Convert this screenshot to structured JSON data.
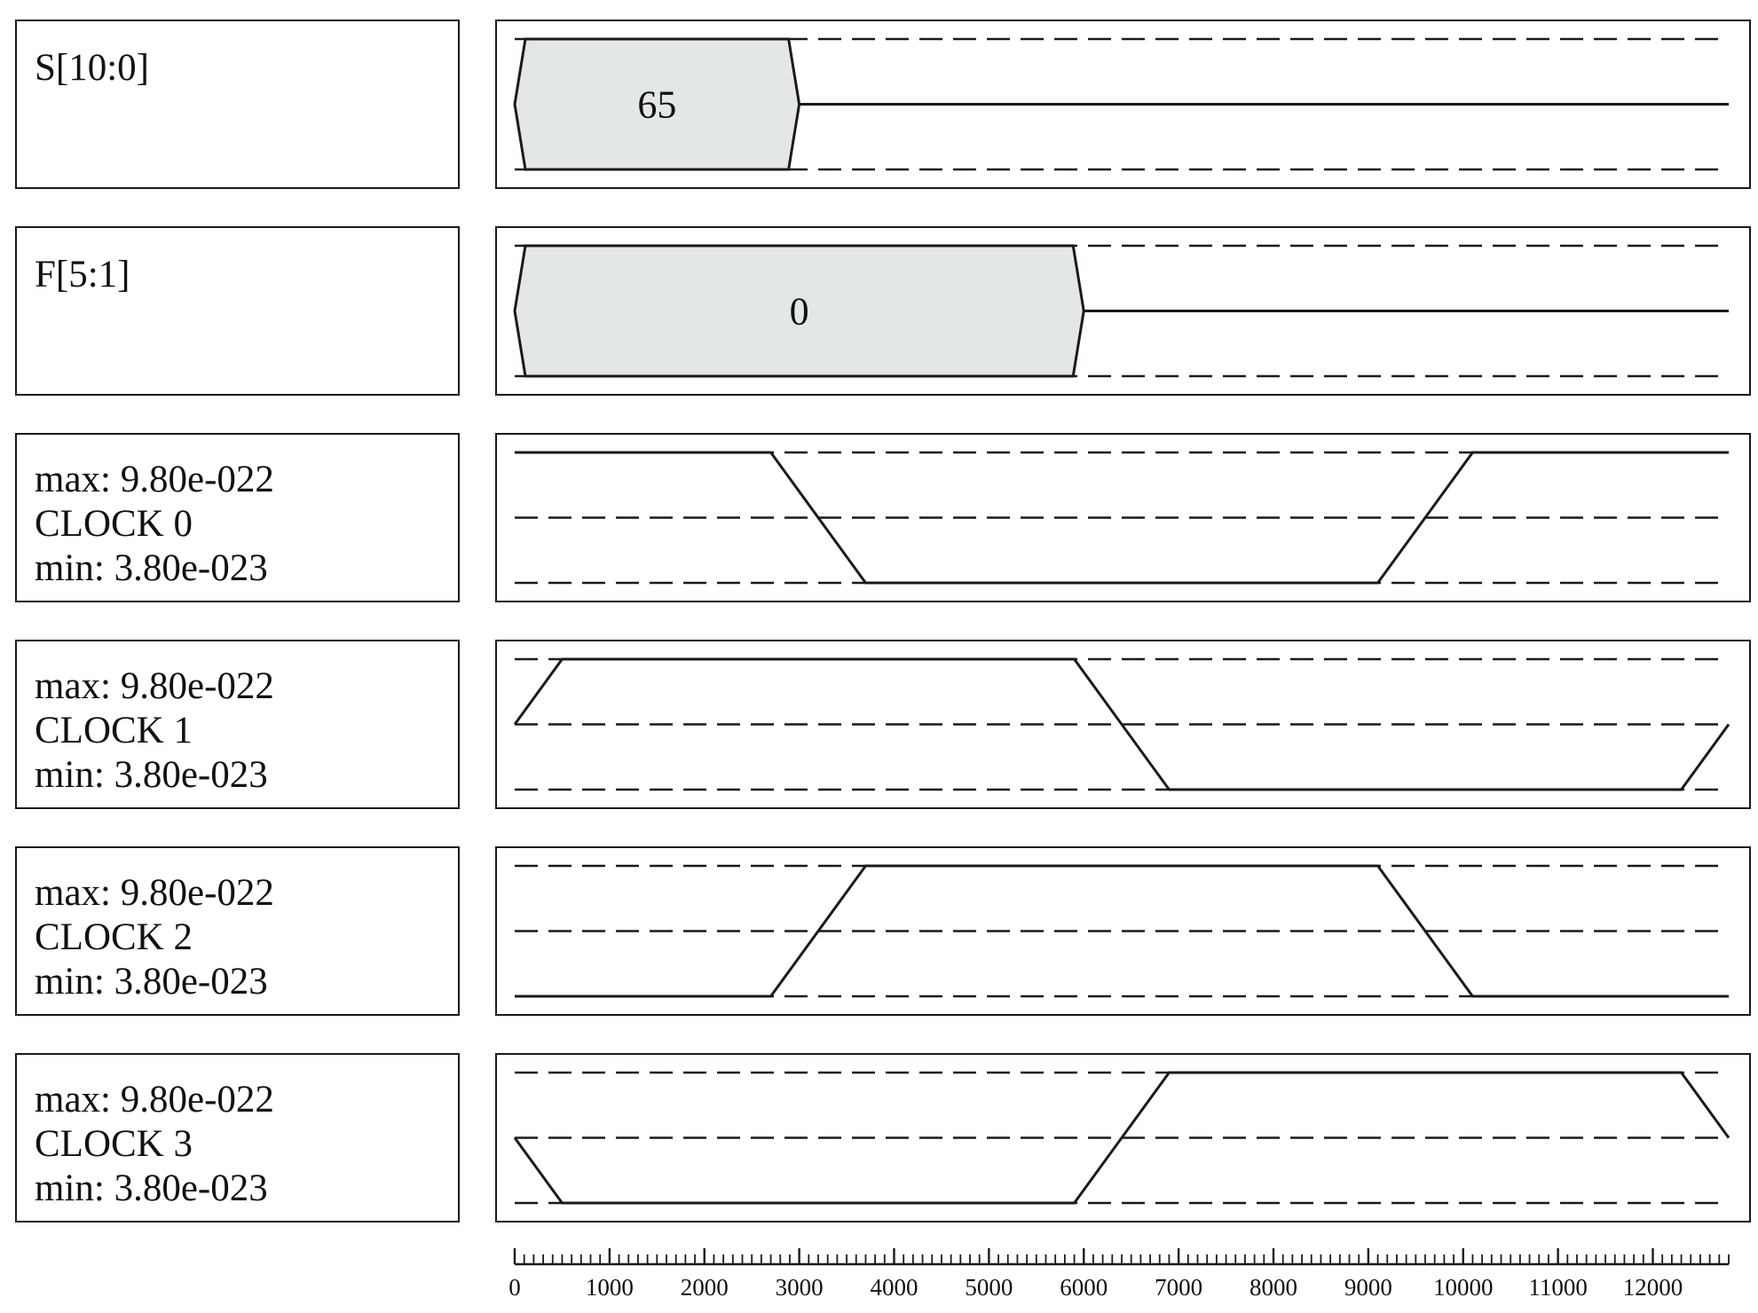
{
  "chart_data": {
    "type": "waveform",
    "x_axis": {
      "min": 0,
      "max": 12800,
      "major_step": 1000,
      "minor_step": 100,
      "tick_labels": [
        "0",
        "1000",
        "2000",
        "3000",
        "4000",
        "5000",
        "6000",
        "7000",
        "8000",
        "9000",
        "10000",
        "11000",
        "12000"
      ]
    },
    "signals": [
      {
        "kind": "bus",
        "label_lines": [
          "S[10:0]"
        ],
        "segments": [
          {
            "start": 0,
            "end": 3000,
            "value": "65"
          }
        ]
      },
      {
        "kind": "bus",
        "label_lines": [
          "F[5:1]"
        ],
        "segments": [
          {
            "start": 0,
            "end": 6000,
            "value": "0"
          }
        ]
      },
      {
        "kind": "analog",
        "label_lines": [
          "max: 9.80e-022",
          "CLOCK 0",
          "min: 3.80e-023"
        ],
        "points": [
          [
            0,
            1
          ],
          [
            2700,
            1
          ],
          [
            3700,
            -1
          ],
          [
            9100,
            -1
          ],
          [
            10100,
            1
          ],
          [
            12800,
            1
          ]
        ]
      },
      {
        "kind": "analog",
        "label_lines": [
          "max: 9.80e-022",
          "CLOCK 1",
          "min: 3.80e-023"
        ],
        "points": [
          [
            0,
            0
          ],
          [
            500,
            1
          ],
          [
            5900,
            1
          ],
          [
            6900,
            -1
          ],
          [
            12300,
            -1
          ],
          [
            12800,
            0
          ]
        ]
      },
      {
        "kind": "analog",
        "label_lines": [
          "max: 9.80e-022",
          "CLOCK 2",
          "min: 3.80e-023"
        ],
        "points": [
          [
            0,
            -1
          ],
          [
            2700,
            -1
          ],
          [
            3700,
            1
          ],
          [
            9100,
            1
          ],
          [
            10100,
            -1
          ],
          [
            12800,
            -1
          ]
        ]
      },
      {
        "kind": "analog",
        "label_lines": [
          "max: 9.80e-022",
          "CLOCK 3",
          "min: 3.80e-023"
        ],
        "points": [
          [
            0,
            0
          ],
          [
            500,
            -1
          ],
          [
            5900,
            -1
          ],
          [
            6900,
            1
          ],
          [
            12300,
            1
          ],
          [
            12800,
            0
          ]
        ]
      }
    ],
    "colors": {
      "line": "#1a1a1a",
      "bus_fill": "#e3e7e6"
    }
  }
}
